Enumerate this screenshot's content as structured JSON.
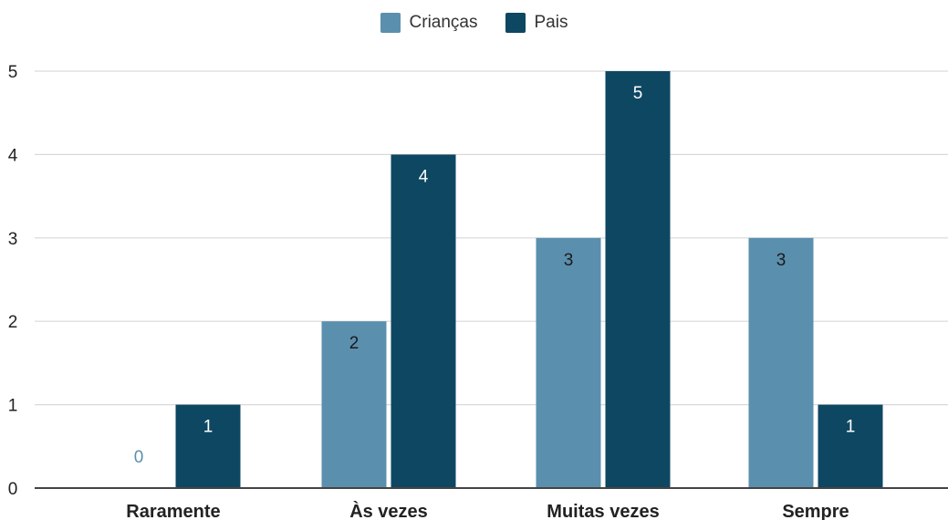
{
  "chart_data": {
    "type": "bar",
    "categories": [
      "Raramente",
      "Às vezes",
      "Muitas vezes",
      "Sempre"
    ],
    "series": [
      {
        "name": "Crianças",
        "values": [
          0,
          2,
          3,
          3
        ],
        "color": "#5b8fae"
      },
      {
        "name": "Pais",
        "values": [
          1,
          4,
          5,
          1
        ],
        "color": "#0e4762"
      }
    ],
    "yticks": [
      0,
      1,
      2,
      3,
      4,
      5
    ],
    "ylim": [
      0,
      5
    ],
    "grid": true,
    "legend_position": "top-center",
    "zero_label_color": "#5b8fae"
  }
}
